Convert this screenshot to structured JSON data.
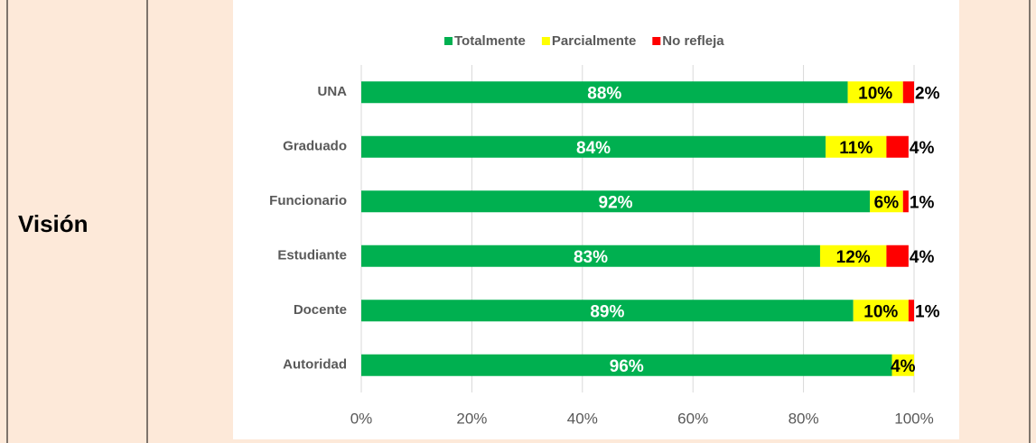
{
  "row_label": "Visión",
  "chart_data": {
    "type": "hbar_stacked",
    "categories": [
      "UNA",
      "Graduado",
      "Funcionario",
      "Estudiante",
      "Docente",
      "Autoridad"
    ],
    "series": [
      {
        "name": "Totalmente",
        "color": "#00b050",
        "values": [
          88,
          84,
          92,
          83,
          89,
          96
        ],
        "value_labels": [
          "88%",
          "84%",
          "92%",
          "83%",
          "89%",
          "96%"
        ]
      },
      {
        "name": "Parcialmente",
        "color": "#ffff00",
        "values": [
          10,
          11,
          6,
          12,
          10,
          4
        ],
        "value_labels": [
          "10%",
          "11%",
          "6%",
          "12%",
          "10%",
          "4%"
        ]
      },
      {
        "name": "No refleja",
        "color": "#ff0000",
        "values": [
          2,
          4,
          1,
          4,
          1,
          null
        ],
        "value_labels": [
          "2%",
          "4%",
          "1%",
          "4%",
          "1%",
          null
        ]
      }
    ],
    "xlim": [
      0,
      100
    ],
    "xticks": [
      {
        "value": 0,
        "label": "0%"
      },
      {
        "value": 20,
        "label": "20%"
      },
      {
        "value": 40,
        "label": "40%"
      },
      {
        "value": 60,
        "label": "60%"
      },
      {
        "value": 80,
        "label": "80%"
      },
      {
        "value": 100,
        "label": "100%"
      }
    ],
    "grid": true,
    "legend": "top"
  }
}
